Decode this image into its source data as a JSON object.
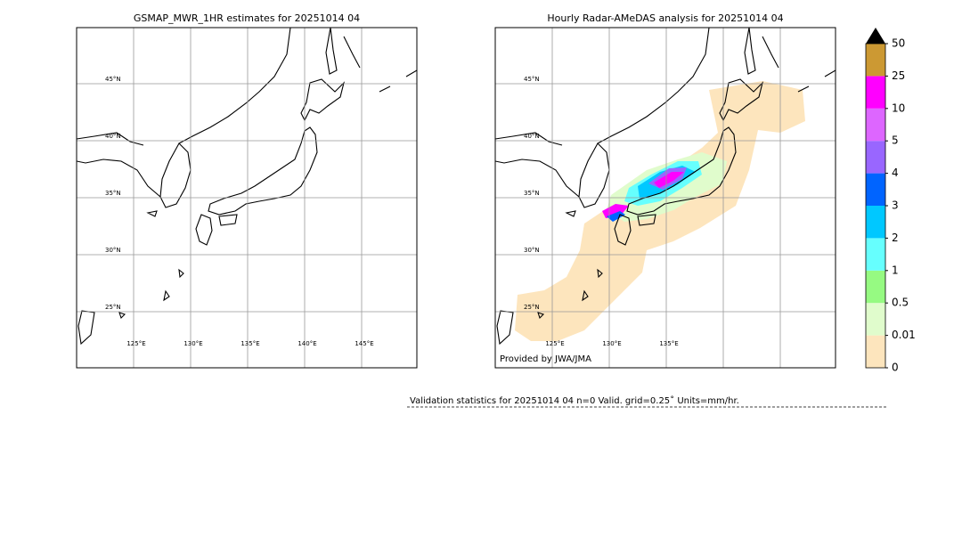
{
  "panels": [
    {
      "title": "GSMAP_MWR_1HR estimates for 20251014 04",
      "lat_labels": [
        "45°N",
        "40°N",
        "35°N",
        "30°N",
        "25°N"
      ],
      "lon_labels": [
        "125°E",
        "130°E",
        "135°E",
        "140°E",
        "145°E"
      ]
    },
    {
      "title": "Hourly Radar-AMeDAS analysis for 20251014 04",
      "lat_labels": [
        "45°N",
        "40°N",
        "35°N",
        "30°N",
        "25°N"
      ],
      "lon_labels": [
        "125°E",
        "130°E",
        "135°E"
      ],
      "credit": "Provided by JWA/JMA"
    }
  ],
  "colorbar": {
    "labels": [
      "0",
      "0.01",
      "0.5",
      "1",
      "2",
      "3",
      "4",
      "5",
      "10",
      "25",
      "50"
    ],
    "colors": [
      "#fde5bd",
      "#e0fccc",
      "#96fa82",
      "#66fffe",
      "#00c8ff",
      "#0064ff",
      "#9966ff",
      "#dd66ff",
      "#ff00ff",
      "#cc9933"
    ]
  },
  "validation": "Validation statistics for 20251014 04  n=0 Valid. grid=0.25˚ Units=mm/hr."
}
